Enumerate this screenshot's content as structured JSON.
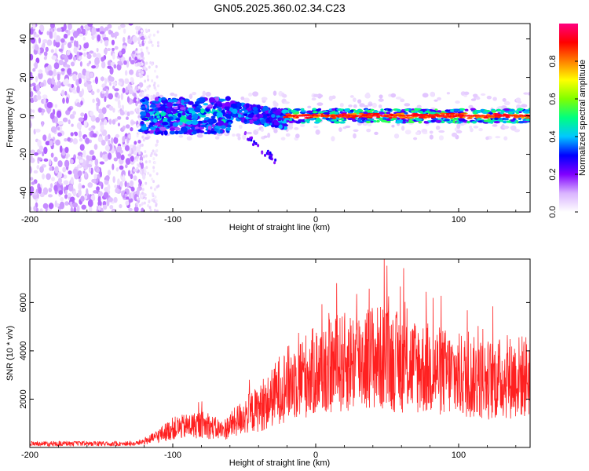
{
  "title": "GN05.2025.360.02.34.C23",
  "chart_data": [
    {
      "type": "heatmap",
      "name": "spectrogram",
      "xlabel": "Height of straight line (km)",
      "ylabel": "Frequency (Hz)",
      "xlim": [
        -200,
        150
      ],
      "ylim": [
        -50,
        48
      ],
      "xticks": [
        -200,
        -100,
        0,
        100
      ],
      "xtick_labels": [
        "-200",
        "-100",
        "0",
        "100"
      ],
      "yticks": [
        -40,
        -20,
        0,
        20,
        40
      ],
      "ytick_labels": [
        "-40",
        "-20",
        "0",
        "20",
        "40"
      ],
      "colorbar": {
        "label": "Normalized spectral amplitude",
        "range": [
          0,
          1
        ],
        "ticks": [
          0.0,
          0.2,
          0.4,
          0.6,
          0.8
        ],
        "tick_labels": [
          "0.0",
          "0.2",
          "0.4",
          "0.6",
          "0.8"
        ],
        "colors": [
          "#ffffff",
          "#d9b3ff",
          "#8000ff",
          "#0000ff",
          "#00c8ff",
          "#00ff80",
          "#80ff00",
          "#ffff00",
          "#ff8000",
          "#ff0000",
          "#ff0080"
        ]
      },
      "description_regions": [
        {
          "x_range": [
            -200,
            -120
          ],
          "freq_range": [
            -50,
            48
          ],
          "amplitude": 0.1,
          "pattern": "scattered noise"
        },
        {
          "x_range": [
            -122,
            -60
          ],
          "freq_range": [
            -10,
            10
          ],
          "amplitude": 0.3,
          "pattern": "broad band"
        },
        {
          "x_range": [
            -60,
            -20
          ],
          "freq_range": [
            -5,
            8
          ],
          "amplitude": 0.35,
          "pattern": "band with tail to -25 Hz"
        },
        {
          "x_range": [
            -20,
            150
          ],
          "freq_range": [
            -3,
            3
          ],
          "amplitude": 0.9,
          "pattern": "narrow strong line at 0 Hz"
        }
      ]
    },
    {
      "type": "line",
      "name": "snr",
      "xlabel": "Height of straight line (km)",
      "ylabel": "SNR (10 * v/v)",
      "xlim": [
        -200,
        150
      ],
      "ylim": [
        0,
        7800
      ],
      "xticks": [
        -200,
        -100,
        0,
        100
      ],
      "xtick_labels": [
        "-200",
        "-100",
        "0",
        "100"
      ],
      "yticks": [
        2000,
        4000,
        6000
      ],
      "ytick_labels": [
        "2000",
        "4000",
        "6000"
      ],
      "series": [
        {
          "name": "SNR",
          "color": "#ff2020",
          "envelope": {
            "x": [
              -200,
              -150,
              -125,
              -115,
              -100,
              -80,
              -65,
              -50,
              -35,
              -25,
              -15,
              0,
              20,
              40,
              60,
              80,
              100,
              120,
              150
            ],
            "y": [
              120,
              150,
              200,
              400,
              900,
              1100,
              800,
              1500,
              2000,
              2800,
              3200,
              3600,
              4000,
              4300,
              4000,
              3700,
              3400,
              3200,
              3400
            ]
          },
          "peak_max": 7800,
          "peak_at": 48
        }
      ]
    }
  ]
}
